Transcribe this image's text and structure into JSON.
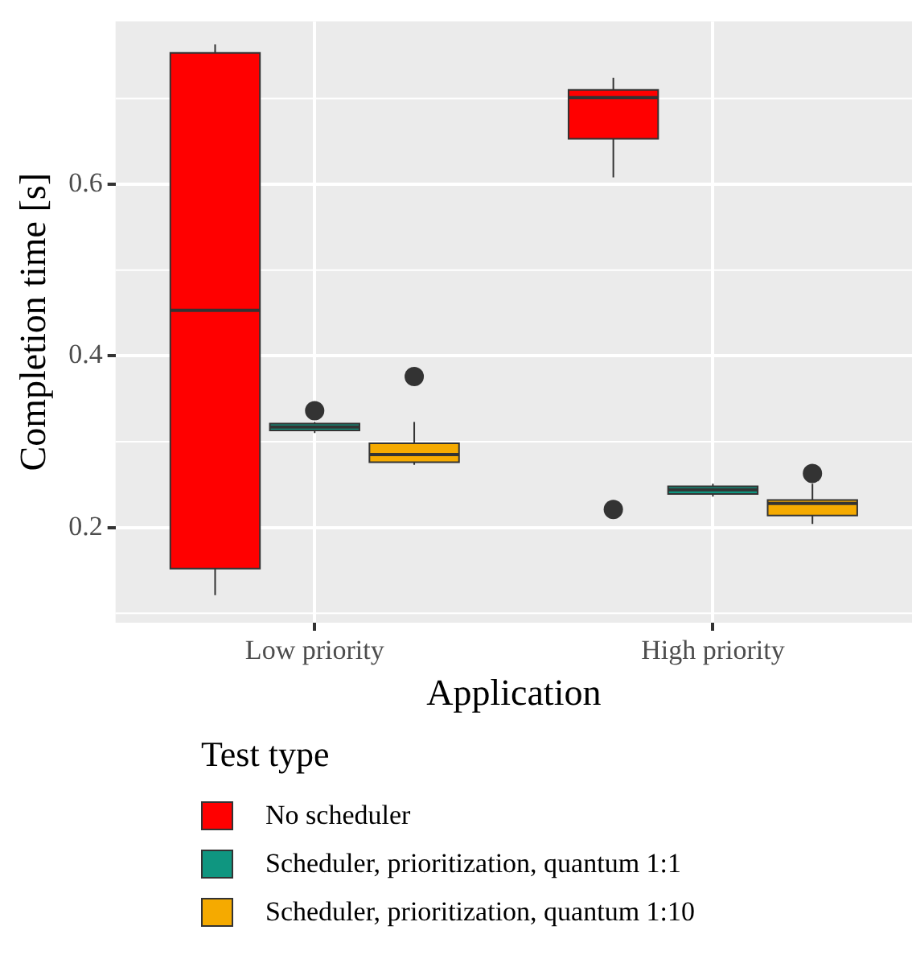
{
  "chart_data": {
    "type": "box",
    "xlabel": "Application",
    "ylabel": "Completion time [s]",
    "legend_title": "Test type",
    "legend": "bottom",
    "grid": true,
    "categories": [
      "Low priority",
      "High priority"
    ],
    "ylim": [
      0.089,
      0.79
    ],
    "yticks": [
      0.2,
      0.4,
      0.6
    ],
    "series": [
      {
        "name": "No scheduler",
        "color": "#ff0000",
        "boxes": [
          {
            "low": 0.121,
            "q1": 0.152,
            "median": 0.453,
            "q3": 0.753,
            "high": 0.763
          },
          {
            "low": 0.608,
            "q1": 0.653,
            "median": 0.701,
            "q3": 0.71,
            "high": 0.724,
            "outliers": [
              0.221
            ]
          }
        ]
      },
      {
        "name": "Scheduler, prioritization, quantum 1:1",
        "color": "#0f9680",
        "boxes": [
          {
            "low": 0.31,
            "q1": 0.313,
            "median": 0.317,
            "q3": 0.321,
            "high": 0.323,
            "outliers": [
              0.336
            ]
          },
          {
            "low": 0.236,
            "q1": 0.239,
            "median": 0.244,
            "q3": 0.248,
            "high": 0.251
          }
        ]
      },
      {
        "name": "Scheduler, prioritization, quantum 1:10",
        "color": "#f5aa00",
        "boxes": [
          {
            "low": 0.273,
            "q1": 0.276,
            "median": 0.285,
            "q3": 0.298,
            "high": 0.323,
            "outliers": [
              0.376
            ]
          },
          {
            "low": 0.204,
            "q1": 0.214,
            "median": 0.228,
            "q3": 0.232,
            "high": 0.251,
            "outliers": [
              0.263
            ]
          }
        ]
      }
    ]
  }
}
